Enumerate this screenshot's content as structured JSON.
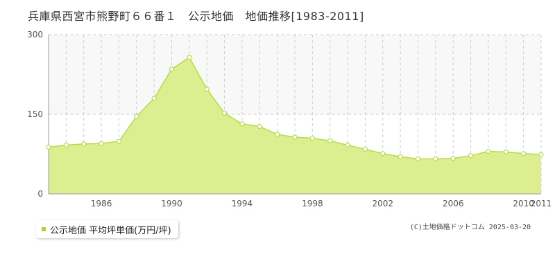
{
  "header": {
    "title": "兵庫県西宮市熊野町６６番１　公示地価　地価推移[1983-2011]"
  },
  "legend": {
    "label": "公示地価 平均坪単価(万円/坪)"
  },
  "footer": {
    "copyright": "(C)土地価格ドットコム 2025-03-20"
  },
  "colors": {
    "area_fill": "#dcee8f",
    "line": "#b5dc4a",
    "marker_fill": "#ffffff",
    "grid_dashed": "#cccccc",
    "upper_band": "#f8f8f8"
  },
  "chart_data": {
    "type": "area",
    "title": "",
    "xlabel": "",
    "ylabel": "",
    "xlim": [
      1983,
      2011
    ],
    "ylim": [
      0,
      300
    ],
    "y_ticks": [
      0,
      150,
      300
    ],
    "x_tick_labels": [
      "1986",
      "1990",
      "1994",
      "1998",
      "2002",
      "2006",
      "2010",
      "2011"
    ],
    "grid": true,
    "legend_position": "bottom-left",
    "series": [
      {
        "name": "公示地価 平均坪単価(万円/坪)",
        "x": [
          1983,
          1984,
          1985,
          1986,
          1987,
          1988,
          1989,
          1990,
          1991,
          1992,
          1993,
          1994,
          1995,
          1996,
          1997,
          1998,
          1999,
          2000,
          2001,
          2002,
          2003,
          2004,
          2005,
          2006,
          2007,
          2008,
          2009,
          2010,
          2011
        ],
        "y": [
          88,
          92,
          94,
          95,
          99,
          146,
          180,
          235,
          257,
          197,
          152,
          132,
          127,
          112,
          107,
          105,
          100,
          92,
          84,
          76,
          70,
          66,
          66,
          67,
          72,
          80,
          79,
          76,
          74
        ]
      }
    ]
  }
}
